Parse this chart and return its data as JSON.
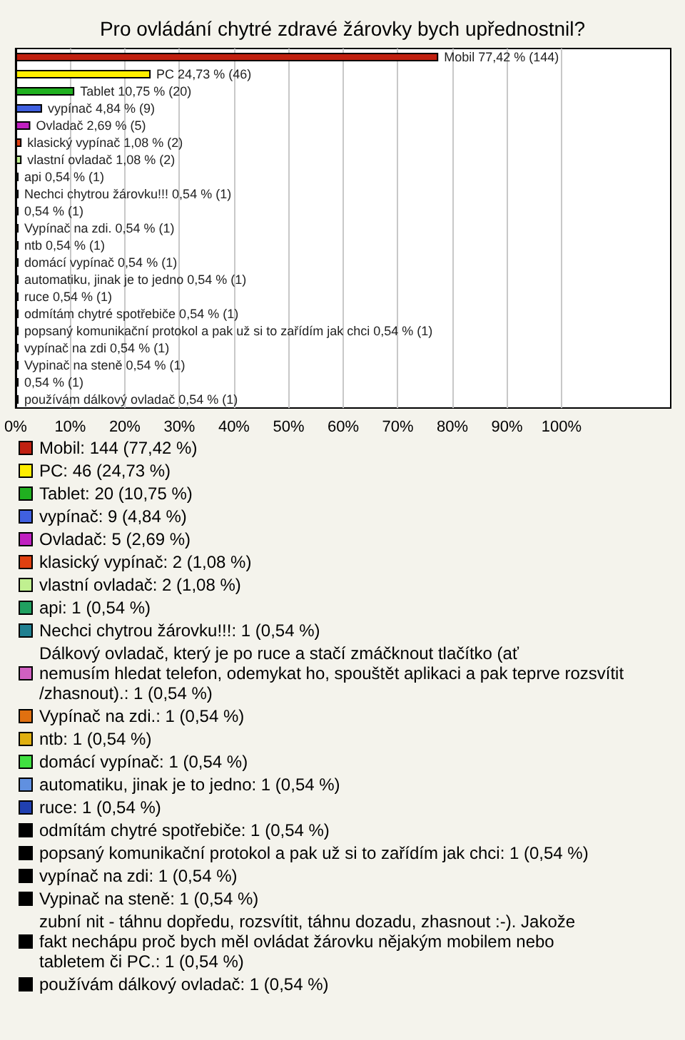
{
  "chart_data": {
    "type": "bar",
    "orientation": "horizontal",
    "title": "Pro ovládání chytré zdravé žárovky bych upřednostnil?",
    "categories": [
      null,
      null,
      null,
      null,
      null,
      null,
      null,
      null,
      null,
      null,
      null,
      null,
      null,
      null,
      null,
      null,
      null,
      null,
      null,
      null,
      null
    ],
    "xlim": [
      0,
      120
    ],
    "xticks": [
      {
        "value": 0,
        "label": "0%"
      },
      {
        "value": 10,
        "label": "10%"
      },
      {
        "value": 20,
        "label": "20%"
      },
      {
        "value": 30,
        "label": "30%"
      },
      {
        "value": 40,
        "label": "40%"
      },
      {
        "value": 50,
        "label": "50%"
      },
      {
        "value": 60,
        "label": "60%"
      },
      {
        "value": 70,
        "label": "70%"
      },
      {
        "value": 80,
        "label": "80%"
      },
      {
        "value": 90,
        "label": "90%"
      },
      {
        "value": 100,
        "label": "100%"
      }
    ],
    "grid": "x",
    "legend": "bottom",
    "series": [
      {
        "name": "Mobil: 144 (77,42 %)",
        "color": "#c02010",
        "values": [
          77.42,
          null,
          null,
          null,
          null,
          null,
          null,
          null,
          null,
          null,
          null,
          null,
          null,
          null,
          null,
          null,
          null,
          null,
          null,
          null,
          null
        ],
        "value_labels": [
          "Mobil 77,42 % (144)",
          null,
          null,
          null,
          null,
          null,
          null,
          null,
          null,
          null,
          null,
          null,
          null,
          null,
          null,
          null,
          null,
          null,
          null,
          null,
          null
        ]
      },
      {
        "name": "PC: 46 (24,73 %)",
        "color": "#ffee00",
        "values": [
          null,
          24.73,
          null,
          null,
          null,
          null,
          null,
          null,
          null,
          null,
          null,
          null,
          null,
          null,
          null,
          null,
          null,
          null,
          null,
          null,
          null
        ],
        "value_labels": [
          null,
          "PC 24,73 % (46)",
          null,
          null,
          null,
          null,
          null,
          null,
          null,
          null,
          null,
          null,
          null,
          null,
          null,
          null,
          null,
          null,
          null,
          null,
          null
        ]
      },
      {
        "name": "Tablet: 20 (10,75 %)",
        "color": "#20b020",
        "values": [
          null,
          null,
          10.75,
          null,
          null,
          null,
          null,
          null,
          null,
          null,
          null,
          null,
          null,
          null,
          null,
          null,
          null,
          null,
          null,
          null,
          null
        ],
        "value_labels": [
          null,
          null,
          "Tablet 10,75 % (20)",
          null,
          null,
          null,
          null,
          null,
          null,
          null,
          null,
          null,
          null,
          null,
          null,
          null,
          null,
          null,
          null,
          null,
          null
        ]
      },
      {
        "name": "vypínač: 9 (4,84 %)",
        "color": "#4060e0",
        "values": [
          null,
          null,
          null,
          4.84,
          null,
          null,
          null,
          null,
          null,
          null,
          null,
          null,
          null,
          null,
          null,
          null,
          null,
          null,
          null,
          null,
          null
        ],
        "value_labels": [
          null,
          null,
          null,
          "vypínač 4,84 % (9)",
          null,
          null,
          null,
          null,
          null,
          null,
          null,
          null,
          null,
          null,
          null,
          null,
          null,
          null,
          null,
          null,
          null
        ]
      },
      {
        "name": "Ovladač: 5 (2,69 %)",
        "color": "#c020c0",
        "values": [
          null,
          null,
          null,
          null,
          2.69,
          null,
          null,
          null,
          null,
          null,
          null,
          null,
          null,
          null,
          null,
          null,
          null,
          null,
          null,
          null,
          null
        ],
        "value_labels": [
          null,
          null,
          null,
          null,
          "Ovladač 2,69 % (5)",
          null,
          null,
          null,
          null,
          null,
          null,
          null,
          null,
          null,
          null,
          null,
          null,
          null,
          null,
          null,
          null
        ]
      },
      {
        "name": "klasický vypínač: 2 (1,08 %)",
        "color": "#e04010",
        "values": [
          null,
          null,
          null,
          null,
          null,
          1.08,
          null,
          null,
          null,
          null,
          null,
          null,
          null,
          null,
          null,
          null,
          null,
          null,
          null,
          null,
          null
        ],
        "value_labels": [
          null,
          null,
          null,
          null,
          null,
          "klasický vypínač 1,08 % (2)",
          null,
          null,
          null,
          null,
          null,
          null,
          null,
          null,
          null,
          null,
          null,
          null,
          null,
          null,
          null
        ]
      },
      {
        "name": "vlastní ovladač: 2 (1,08 %)",
        "color": "#c0f090",
        "values": [
          null,
          null,
          null,
          null,
          null,
          null,
          1.08,
          null,
          null,
          null,
          null,
          null,
          null,
          null,
          null,
          null,
          null,
          null,
          null,
          null,
          null
        ],
        "value_labels": [
          null,
          null,
          null,
          null,
          null,
          null,
          "vlastní ovladač 1,08 % (2)",
          null,
          null,
          null,
          null,
          null,
          null,
          null,
          null,
          null,
          null,
          null,
          null,
          null,
          null
        ]
      },
      {
        "name": "api: 1 (0,54 %)",
        "color": "#20a060",
        "values": [
          null,
          null,
          null,
          null,
          null,
          null,
          null,
          0.54,
          null,
          null,
          null,
          null,
          null,
          null,
          null,
          null,
          null,
          null,
          null,
          null,
          null
        ],
        "value_labels": [
          null,
          null,
          null,
          null,
          null,
          null,
          null,
          "api 0,54 % (1)",
          null,
          null,
          null,
          null,
          null,
          null,
          null,
          null,
          null,
          null,
          null,
          null,
          null
        ]
      },
      {
        "name": "Nechci chytrou žárovku!!!: 1 (0,54 %)",
        "color": "#208090",
        "values": [
          null,
          null,
          null,
          null,
          null,
          null,
          null,
          null,
          0.54,
          null,
          null,
          null,
          null,
          null,
          null,
          null,
          null,
          null,
          null,
          null,
          null
        ],
        "value_labels": [
          null,
          null,
          null,
          null,
          null,
          null,
          null,
          null,
          "Nechci chytrou žárovku!!! 0,54 % (1)",
          null,
          null,
          null,
          null,
          null,
          null,
          null,
          null,
          null,
          null,
          null,
          null
        ]
      },
      {
        "name": "Dálkový ovladač, který je po ruce a stačí zmáčknout tlačítko (ať nemusím hledat telefon, odemykat ho, spouštět aplikaci a pak teprve rozsvítit/zhasnout).: 1 (0,54 %)",
        "color": "#d060c0",
        "values": [
          null,
          null,
          null,
          null,
          null,
          null,
          null,
          null,
          null,
          0.54,
          null,
          null,
          null,
          null,
          null,
          null,
          null,
          null,
          null,
          null,
          null
        ],
        "value_labels": [
          null,
          null,
          null,
          null,
          null,
          null,
          null,
          null,
          null,
          "0,54 % (1)",
          null,
          null,
          null,
          null,
          null,
          null,
          null,
          null,
          null,
          null,
          null
        ]
      },
      {
        "name": "Vypínač na zdi.: 1 (0,54 %)",
        "color": "#e07010",
        "values": [
          null,
          null,
          null,
          null,
          null,
          null,
          null,
          null,
          null,
          null,
          0.54,
          null,
          null,
          null,
          null,
          null,
          null,
          null,
          null,
          null,
          null
        ],
        "value_labels": [
          null,
          null,
          null,
          null,
          null,
          null,
          null,
          null,
          null,
          null,
          "Vypínač na zdi. 0,54 % (1)",
          null,
          null,
          null,
          null,
          null,
          null,
          null,
          null,
          null,
          null
        ]
      },
      {
        "name": "ntb: 1 (0,54 %)",
        "color": "#e0b010",
        "values": [
          null,
          null,
          null,
          null,
          null,
          null,
          null,
          null,
          null,
          null,
          null,
          0.54,
          null,
          null,
          null,
          null,
          null,
          null,
          null,
          null,
          null
        ],
        "value_labels": [
          null,
          null,
          null,
          null,
          null,
          null,
          null,
          null,
          null,
          null,
          null,
          "ntb 0,54 % (1)",
          null,
          null,
          null,
          null,
          null,
          null,
          null,
          null,
          null
        ]
      },
      {
        "name": "domácí vypínač: 1 (0,54 %)",
        "color": "#40e040",
        "values": [
          null,
          null,
          null,
          null,
          null,
          null,
          null,
          null,
          null,
          null,
          null,
          null,
          0.54,
          null,
          null,
          null,
          null,
          null,
          null,
          null,
          null
        ],
        "value_labels": [
          null,
          null,
          null,
          null,
          null,
          null,
          null,
          null,
          null,
          null,
          null,
          null,
          "domácí vypínač 0,54 % (1)",
          null,
          null,
          null,
          null,
          null,
          null,
          null,
          null
        ]
      },
      {
        "name": "automatiku, jinak je to jedno: 1 (0,54 %)",
        "color": "#6090e0",
        "values": [
          null,
          null,
          null,
          null,
          null,
          null,
          null,
          null,
          null,
          null,
          null,
          null,
          null,
          0.54,
          null,
          null,
          null,
          null,
          null,
          null,
          null
        ],
        "value_labels": [
          null,
          null,
          null,
          null,
          null,
          null,
          null,
          null,
          null,
          null,
          null,
          null,
          null,
          "automatiku, jinak je to jedno 0,54 % (1)",
          null,
          null,
          null,
          null,
          null,
          null,
          null
        ]
      },
      {
        "name": "ruce: 1 (0,54 %)",
        "color": "#2040b0",
        "values": [
          null,
          null,
          null,
          null,
          null,
          null,
          null,
          null,
          null,
          null,
          null,
          null,
          null,
          null,
          0.54,
          null,
          null,
          null,
          null,
          null,
          null
        ],
        "value_labels": [
          null,
          null,
          null,
          null,
          null,
          null,
          null,
          null,
          null,
          null,
          null,
          null,
          null,
          null,
          "ruce 0,54 % (1)",
          null,
          null,
          null,
          null,
          null,
          null
        ]
      },
      {
        "name": "odmítám chytré spotřebiče: 1 (0,54 %)",
        "color": "#000000",
        "values": [
          null,
          null,
          null,
          null,
          null,
          null,
          null,
          null,
          null,
          null,
          null,
          null,
          null,
          null,
          null,
          0.54,
          null,
          null,
          null,
          null,
          null
        ],
        "value_labels": [
          null,
          null,
          null,
          null,
          null,
          null,
          null,
          null,
          null,
          null,
          null,
          null,
          null,
          null,
          null,
          "odmítám chytré spotřebiče 0,54 % (1)",
          null,
          null,
          null,
          null,
          null
        ]
      },
      {
        "name": "popsaný komunikační protokol a pak už si to zařídím jak chci: 1 (0,54 %)",
        "color": "#000000",
        "values": [
          null,
          null,
          null,
          null,
          null,
          null,
          null,
          null,
          null,
          null,
          null,
          null,
          null,
          null,
          null,
          null,
          0.54,
          null,
          null,
          null,
          null
        ],
        "value_labels": [
          null,
          null,
          null,
          null,
          null,
          null,
          null,
          null,
          null,
          null,
          null,
          null,
          null,
          null,
          null,
          null,
          "popsaný komunikační protokol a pak už si to zařídím jak chci 0,54 % (1)",
          null,
          null,
          null,
          null
        ]
      },
      {
        "name": "vypínač na zdi: 1 (0,54 %)",
        "color": "#000000",
        "values": [
          null,
          null,
          null,
          null,
          null,
          null,
          null,
          null,
          null,
          null,
          null,
          null,
          null,
          null,
          null,
          null,
          null,
          0.54,
          null,
          null,
          null
        ],
        "value_labels": [
          null,
          null,
          null,
          null,
          null,
          null,
          null,
          null,
          null,
          null,
          null,
          null,
          null,
          null,
          null,
          null,
          null,
          "vypínač na zdi 0,54 % (1)",
          null,
          null,
          null
        ]
      },
      {
        "name": "Vypinač na steně: 1 (0,54 %)",
        "color": "#000000",
        "values": [
          null,
          null,
          null,
          null,
          null,
          null,
          null,
          null,
          null,
          null,
          null,
          null,
          null,
          null,
          null,
          null,
          null,
          null,
          0.54,
          null,
          null
        ],
        "value_labels": [
          null,
          null,
          null,
          null,
          null,
          null,
          null,
          null,
          null,
          null,
          null,
          null,
          null,
          null,
          null,
          null,
          null,
          null,
          "Vypinač na steně 0,54 % (1)",
          null,
          null
        ]
      },
      {
        "name": "zubní nit - táhnu dopředu, rozsvítit, táhnu dozadu, zhasnout :-). Jakože fakt nechápu proč bych měl ovládat žárovku nějakým mobilem nebo tabletem či PC.: 1 (0,54 %)",
        "color": "#000000",
        "values": [
          null,
          null,
          null,
          null,
          null,
          null,
          null,
          null,
          null,
          null,
          null,
          null,
          null,
          null,
          null,
          null,
          null,
          null,
          null,
          0.54,
          null
        ],
        "value_labels": [
          null,
          null,
          null,
          null,
          null,
          null,
          null,
          null,
          null,
          null,
          null,
          null,
          null,
          null,
          null,
          null,
          null,
          null,
          null,
          "0,54 % (1)",
          null
        ]
      },
      {
        "name": "používám dálkový ovladač: 1 (0,54 %)",
        "color": "#000000",
        "values": [
          null,
          null,
          null,
          null,
          null,
          null,
          null,
          null,
          null,
          null,
          null,
          null,
          null,
          null,
          null,
          null,
          null,
          null,
          null,
          null,
          0.54
        ],
        "value_labels": [
          null,
          null,
          null,
          null,
          null,
          null,
          null,
          null,
          null,
          null,
          null,
          null,
          null,
          null,
          null,
          null,
          null,
          null,
          null,
          null,
          "používám dálkový ovladač 0,54 % (1)"
        ]
      }
    ]
  }
}
